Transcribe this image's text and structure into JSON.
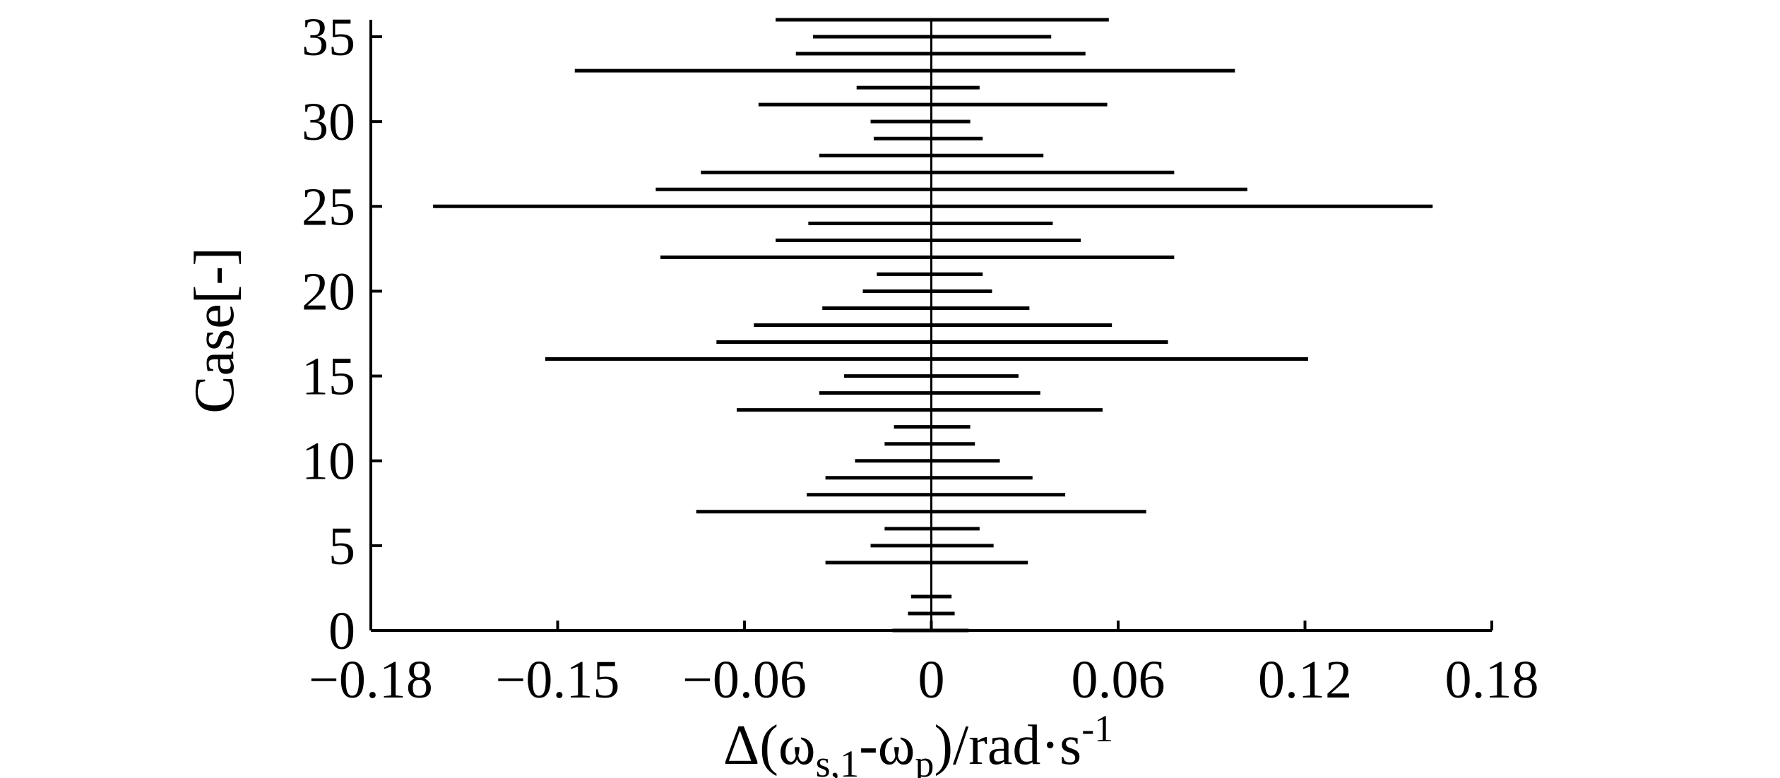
{
  "chart_data": {
    "type": "range",
    "xlabel": {
      "prefix": "Δ(ω",
      "sub1": "s,1",
      "mid": "-ω",
      "sub2": "p",
      "suffix": ")/rad·s",
      "sup": "-1"
    },
    "ylabel": "Case[-]",
    "xlim": [
      -0.18,
      0.18
    ],
    "ylim": [
      0,
      36
    ],
    "x_tick_labels": [
      "−0.18",
      "−0.15",
      "−0.06",
      "0",
      "0.06",
      "0.12",
      "0.18"
    ],
    "y_ticks": [
      0,
      5,
      10,
      15,
      20,
      25,
      30,
      35
    ],
    "grid": false,
    "reference_line_x": 0,
    "cases": [
      {
        "case": 0,
        "min": -0.0125,
        "max": 0.012
      },
      {
        "case": 1,
        "min": -0.0075,
        "max": 0.0075
      },
      {
        "case": 2,
        "min": -0.0065,
        "max": 0.0065
      },
      {
        "case": 4,
        "min": -0.034,
        "max": 0.031
      },
      {
        "case": 5,
        "min": -0.0195,
        "max": 0.02
      },
      {
        "case": 6,
        "min": -0.015,
        "max": 0.0155
      },
      {
        "case": 7,
        "min": -0.0755,
        "max": 0.069
      },
      {
        "case": 8,
        "min": -0.04,
        "max": 0.043
      },
      {
        "case": 9,
        "min": -0.034,
        "max": 0.0325
      },
      {
        "case": 10,
        "min": -0.0245,
        "max": 0.022
      },
      {
        "case": 11,
        "min": -0.015,
        "max": 0.014
      },
      {
        "case": 12,
        "min": -0.012,
        "max": 0.0125
      },
      {
        "case": 13,
        "min": -0.0625,
        "max": 0.055
      },
      {
        "case": 14,
        "min": -0.036,
        "max": 0.035
      },
      {
        "case": 15,
        "min": -0.028,
        "max": 0.028
      },
      {
        "case": 16,
        "min": -0.124,
        "max": 0.121
      },
      {
        "case": 17,
        "min": -0.069,
        "max": 0.076
      },
      {
        "case": 18,
        "min": -0.057,
        "max": 0.058
      },
      {
        "case": 19,
        "min": -0.035,
        "max": 0.0315
      },
      {
        "case": 20,
        "min": -0.022,
        "max": 0.0195
      },
      {
        "case": 21,
        "min": -0.0175,
        "max": 0.0165
      },
      {
        "case": 22,
        "min": -0.087,
        "max": 0.078
      },
      {
        "case": 23,
        "min": -0.05,
        "max": 0.048
      },
      {
        "case": 24,
        "min": -0.0395,
        "max": 0.039
      },
      {
        "case": 25,
        "min": -0.16,
        "max": 0.161
      },
      {
        "case": 26,
        "min": -0.0885,
        "max": 0.1015
      },
      {
        "case": 27,
        "min": -0.074,
        "max": 0.078
      },
      {
        "case": 28,
        "min": -0.036,
        "max": 0.036
      },
      {
        "case": 29,
        "min": -0.0185,
        "max": 0.0165
      },
      {
        "case": 30,
        "min": -0.0195,
        "max": 0.0125
      },
      {
        "case": 31,
        "min": -0.0555,
        "max": 0.0565
      },
      {
        "case": 32,
        "min": -0.024,
        "max": 0.0155
      },
      {
        "case": 33,
        "min": -0.1145,
        "max": 0.0975
      },
      {
        "case": 34,
        "min": -0.0435,
        "max": 0.0495
      },
      {
        "case": 35,
        "min": -0.038,
        "max": 0.0385
      },
      {
        "case": 36,
        "min": -0.05,
        "max": 0.057
      }
    ]
  }
}
